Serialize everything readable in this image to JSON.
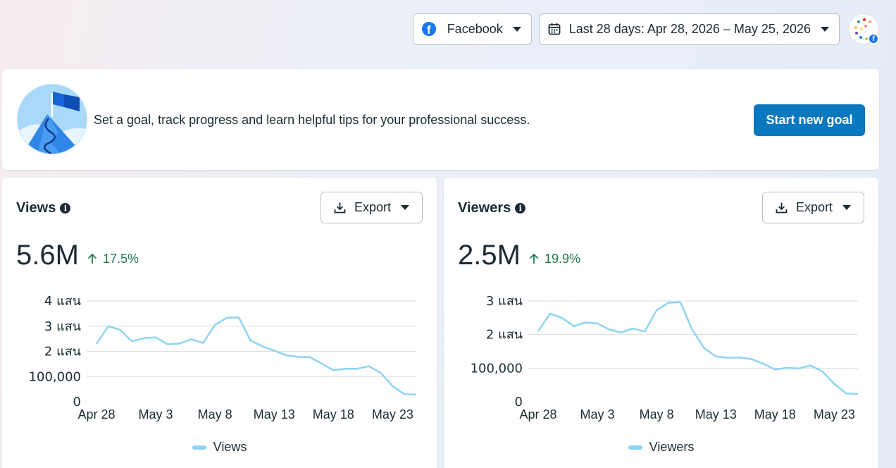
{
  "header": {
    "platform_label": "Facebook",
    "date_range_label": "Last 28 days: Apr 28, 2026 – May 25, 2026",
    "platform_icon_letter": "f"
  },
  "goal": {
    "text": "Set a goal, track progress and learn helpful tips for your professional success.",
    "button_label": "Start new goal"
  },
  "panels": [
    {
      "title": "Views",
      "info_glyph": "i",
      "export_label": "Export",
      "value": "5.6M",
      "change": "17.5%",
      "legend": "Views",
      "chart_data": {
        "type": "line",
        "yticks": [
          {
            "v": 0,
            "label": "0"
          },
          {
            "v": 100000,
            "label": "100,000"
          },
          {
            "v": 200000,
            "label": "2 แสน"
          },
          {
            "v": 300000,
            "label": "3 แสน"
          },
          {
            "v": 400000,
            "label": "4 แสน"
          }
        ],
        "ylim": [
          0,
          400000
        ],
        "xticks": [
          "Apr 28",
          "May 3",
          "May 8",
          "May 13",
          "May 18",
          "May 23"
        ],
        "series": [
          {
            "name": "Views",
            "color": "#8fd3f3",
            "values": [
              230000,
              300000,
              285000,
              240000,
              252000,
              256000,
              228000,
              231000,
              248000,
              233000,
              305000,
              333000,
              335000,
              243000,
              220000,
              203000,
              185000,
              178000,
              177000,
              152000,
              125000,
              131000,
              131000,
              141000,
              114000,
              62000,
              30000,
              28000
            ]
          }
        ]
      }
    },
    {
      "title": "Viewers",
      "info_glyph": "i",
      "export_label": "Export",
      "value": "2.5M",
      "change": "19.9%",
      "legend": "Viewers",
      "chart_data": {
        "type": "line",
        "yticks": [
          {
            "v": 0,
            "label": "0"
          },
          {
            "v": 100000,
            "label": "100,000"
          },
          {
            "v": 200000,
            "label": "2 แสน"
          },
          {
            "v": 300000,
            "label": "3 แสน"
          }
        ],
        "ylim": [
          0,
          300000
        ],
        "xticks": [
          "Apr 28",
          "May 3",
          "May 8",
          "May 13",
          "May 18",
          "May 23"
        ],
        "series": [
          {
            "name": "Viewers",
            "color": "#8fd3f3",
            "values": [
              210000,
              262000,
              250000,
              225000,
              236000,
              233000,
              215000,
              206000,
              218000,
              209000,
              272000,
              295000,
              296000,
              215000,
              160000,
              135000,
              131000,
              132000,
              127000,
              113000,
              96000,
              101000,
              99000,
              108000,
              90000,
              53000,
              25000,
              23000
            ]
          }
        ]
      }
    }
  ]
}
